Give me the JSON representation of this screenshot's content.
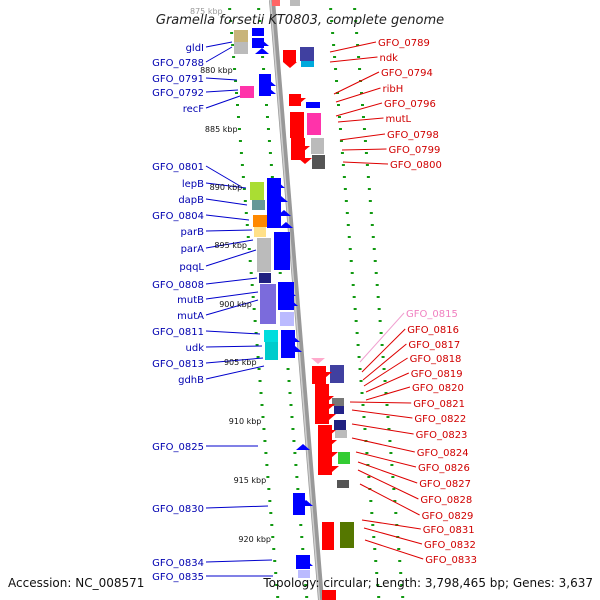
{
  "title": "Gramella forsetii KT0803, complete genome",
  "footer": {
    "accession": "Accession: NC_008571",
    "topology": "Topology: circular; Length: 3,798,465 bp; Genes: 3,637"
  },
  "scale": {
    "partial_label": "875 kbp",
    "ticks": [
      {
        "label": "880 kbp"
      },
      {
        "label": "885 kbp"
      },
      {
        "label": "890 kbp"
      },
      {
        "label": "895 kbp"
      },
      {
        "label": "900 kbp"
      },
      {
        "label": "905 kbp"
      },
      {
        "label": "910 kbp"
      },
      {
        "label": "915 kbp"
      },
      {
        "label": "920 kbp"
      }
    ]
  },
  "left_genes": [
    {
      "name": "gldI"
    },
    {
      "name": "GFO_0788"
    },
    {
      "name": "GFO_0791"
    },
    {
      "name": "GFO_0792"
    },
    {
      "name": "recF"
    },
    {
      "name": "GFO_0801"
    },
    {
      "name": "lepB"
    },
    {
      "name": "dapB"
    },
    {
      "name": "GFO_0804"
    },
    {
      "name": "parB"
    },
    {
      "name": "parA"
    },
    {
      "name": "pqqL"
    },
    {
      "name": "GFO_0808"
    },
    {
      "name": "mutB"
    },
    {
      "name": "mutA"
    },
    {
      "name": "GFO_0811"
    },
    {
      "name": "udk"
    },
    {
      "name": "GFO_0813"
    },
    {
      "name": "gdhB"
    },
    {
      "name": "GFO_0825"
    },
    {
      "name": "GFO_0830"
    },
    {
      "name": "GFO_0834"
    },
    {
      "name": "GFO_0835"
    }
  ],
  "right_genes": [
    {
      "name": "GFO_0789"
    },
    {
      "name": "ndk"
    },
    {
      "name": "GFO_0794"
    },
    {
      "name": "ribH"
    },
    {
      "name": "GFO_0796"
    },
    {
      "name": "mutL"
    },
    {
      "name": "GFO_0798"
    },
    {
      "name": "GFO_0799"
    },
    {
      "name": "GFO_0800"
    },
    {
      "name": "GFO_0815",
      "style": "pink"
    },
    {
      "name": "GFO_0816"
    },
    {
      "name": "GFO_0817"
    },
    {
      "name": "GFO_0818"
    },
    {
      "name": "GFO_0819"
    },
    {
      "name": "GFO_0820"
    },
    {
      "name": "GFO_0821"
    },
    {
      "name": "GFO_0822"
    },
    {
      "name": "GFO_0823"
    },
    {
      "name": "GFO_0824"
    },
    {
      "name": "GFO_0826"
    },
    {
      "name": "GFO_0827"
    },
    {
      "name": "GFO_0828"
    },
    {
      "name": "GFO_0829"
    },
    {
      "name": "GFO_0831"
    },
    {
      "name": "GFO_0832"
    },
    {
      "name": "GFO_0833"
    }
  ],
  "colors": {
    "forward_strand": "#0000ff",
    "reverse_strand": "#ff0000",
    "axis": "#999999",
    "dots": "#119911",
    "left_label": "#0000b0",
    "right_label": "#d00000"
  }
}
